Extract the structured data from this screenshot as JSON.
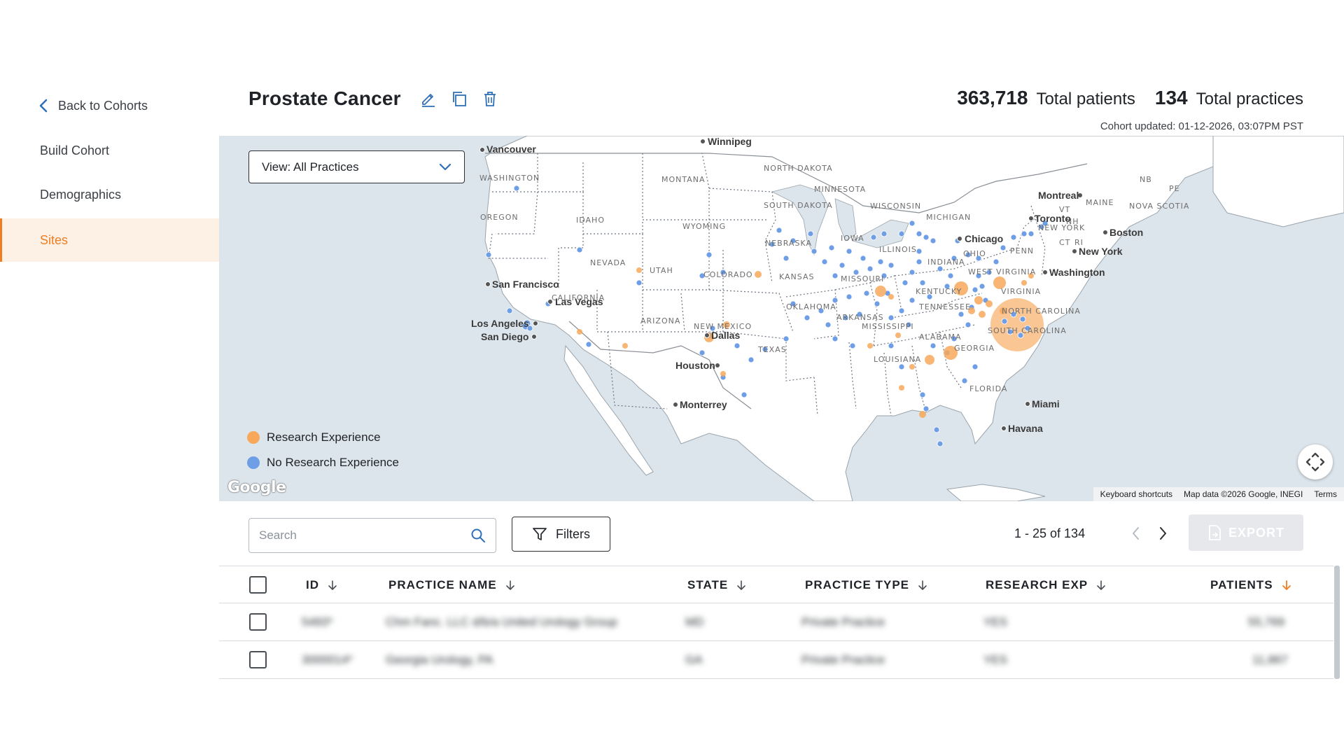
{
  "sidebar": {
    "back_label": "Back to Cohorts",
    "items": [
      {
        "label": "Build Cohort",
        "active": false
      },
      {
        "label": "Demographics",
        "active": false
      },
      {
        "label": "Sites",
        "active": true
      }
    ]
  },
  "header": {
    "title": "Prostate Cancer",
    "icons": [
      "edit-icon",
      "copy-icon",
      "trash-icon"
    ],
    "total_patients_value": "363,718",
    "total_patients_label": "Total patients",
    "total_practices_value": "134",
    "total_practices_label": "Total practices",
    "updated": "Cohort updated: 01-12-2026, 03:07PM PST"
  },
  "map": {
    "view_select": "View: All Practices",
    "legend": [
      {
        "label": "Research Experience",
        "color": "#f7a85a"
      },
      {
        "label": "No Research Experience",
        "color": "#6e9ee6"
      }
    ],
    "logo": "Google",
    "attribution": [
      "Keyboard shortcuts",
      "Map data ©2026 Google, INEGI",
      "Terms"
    ],
    "cities": [
      "Winnipeg",
      "Vancouver",
      "Montreal",
      "Toronto",
      "Boston",
      "New York",
      "Washington",
      "Chicago",
      "San Francisco",
      "Las Vegas",
      "Los Angeles",
      "San Diego",
      "Dallas",
      "Houston",
      "Monterrey",
      "Miami",
      "Havana"
    ],
    "states": [
      "WASHINGTON",
      "MONTANA",
      "NORTH DAKOTA",
      "MINNESOTA",
      "OREGON",
      "IDAHO",
      "WYOMING",
      "SOUTH DAKOTA",
      "WISCONSIN",
      "MICHIGAN",
      "NEW YORK",
      "NEVADA",
      "UTAH",
      "COLORADO",
      "NEBRASKA",
      "IOWA",
      "ILLINOIS",
      "INDIANA",
      "OHIO",
      "PENN",
      "CALIFORNIA",
      "KANSAS",
      "MISSOURI",
      "WEST VIRGINIA",
      "VIRGINIA",
      "KENTUCKY",
      "ARIZONA",
      "NEW MEXICO",
      "OKLAHOMA",
      "ARKANSAS",
      "TENNESSEE",
      "NORTH CAROLINA",
      "SOUTH CAROLINA",
      "MISSISSIPPI",
      "ALABAMA",
      "GEORGIA",
      "TEXAS",
      "LOUISIANA",
      "FLORIDA",
      "NB",
      "PE",
      "MAINE",
      "NOVA SCOTIA",
      "VT",
      "NH",
      "CT",
      "RI"
    ]
  },
  "toolbar": {
    "search_placeholder": "Search",
    "filters_label": "Filters",
    "pager_text": "1 - 25 of 134",
    "export_label": "EXPORT"
  },
  "table": {
    "columns": [
      "ID",
      "PRACTICE NAME",
      "STATE",
      "PRACTICE TYPE",
      "RESEARCH EXP",
      "PATIENTS"
    ],
    "sort_active_color": "#ef7d22",
    "rows": [
      {
        "id": "5493*",
        "name": "Chm Fanc. LLC d/b/a United Urology Group",
        "state": "MD",
        "type": "Private Practice",
        "research": "YES",
        "patients": "55,769"
      },
      {
        "id": "3000014*",
        "name": "Georgia Urology, PA",
        "state": "GA",
        "type": "Private Practice",
        "research": "YES",
        "patients": "11,867"
      }
    ]
  },
  "colors": {
    "accent": "#ef7d22",
    "link": "#2e6fb7",
    "research_dot": "#f7a85a",
    "no_research_dot": "#6e9ee6"
  }
}
